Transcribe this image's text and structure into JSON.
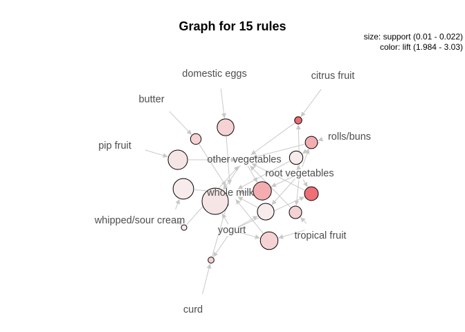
{
  "title": "Graph for 15 rules",
  "legend": {
    "size": "size: support (0.01 - 0.022)",
    "color": "color: lift (1.984 - 3.03)"
  },
  "colors": {
    "edge": "#c8c8c8",
    "node_stroke": "#000000",
    "label": "#4d4d4d",
    "lift_low": "#f7eded",
    "lift_high": "#ee6b74"
  },
  "items": [
    {
      "id": "domestic_eggs",
      "label": "domestic eggs"
    },
    {
      "id": "citrus_fruit",
      "label": "citrus fruit"
    },
    {
      "id": "butter",
      "label": "butter"
    },
    {
      "id": "rolls_buns",
      "label": "rolls/buns"
    },
    {
      "id": "pip_fruit",
      "label": "pip fruit"
    },
    {
      "id": "other_vegetables",
      "label": "other vegetables"
    },
    {
      "id": "root_vegetables",
      "label": "root vegetables"
    },
    {
      "id": "whole_milk",
      "label": "whole milk"
    },
    {
      "id": "whipped_sour_cream",
      "label": "whipped/sour cream"
    },
    {
      "id": "yogurt",
      "label": "yogurt"
    },
    {
      "id": "tropical_fruit",
      "label": "tropical fruit"
    },
    {
      "id": "curd",
      "label": "curd"
    }
  ],
  "rules": [
    {
      "lhs": [
        "domestic_eggs"
      ],
      "rhs": "whole_milk",
      "support": 0.0146,
      "lift": 2.2
    },
    {
      "lhs": [
        "butter"
      ],
      "rhs": "whole_milk",
      "support": 0.0115,
      "lift": 2.2
    },
    {
      "lhs": [
        "pip_fruit"
      ],
      "rhs": "other_vegetables",
      "support": 0.0163,
      "lift": 2.05
    },
    {
      "lhs": [
        "whipped_sour_cream"
      ],
      "rhs": "whole_milk",
      "support": 0.0171,
      "lift": 2.0
    },
    {
      "lhs": [
        "whipped_sour_cream"
      ],
      "rhs": "other_vegetables",
      "support": 0.01,
      "lift": 2.0
    },
    {
      "lhs": [
        "other_vegetables",
        "yogurt"
      ],
      "rhs": "whole_milk",
      "support": 0.0223,
      "lift": 2.05
    },
    {
      "lhs": [
        "citrus_fruit",
        "root_vegetables"
      ],
      "rhs": "other_vegetables",
      "support": 0.0104,
      "lift": 3.03
    },
    {
      "lhs": [
        "rolls_buns",
        "root_vegetables"
      ],
      "rhs": "other_vegetables",
      "support": 0.0122,
      "lift": 2.5
    },
    {
      "lhs": [
        "rolls_buns",
        "root_vegetables"
      ],
      "rhs": "whole_milk",
      "support": 0.0127,
      "lift": 2.0
    },
    {
      "lhs": [
        "root_vegetables",
        "yogurt"
      ],
      "rhs": "other_vegetables",
      "support": 0.0129,
      "lift": 3.0
    },
    {
      "lhs": [
        "root_vegetables",
        "tropical_fruit"
      ],
      "rhs": "other_vegetables",
      "support": 0.0123,
      "lift": 2.2
    },
    {
      "lhs": [
        "other_vegetables",
        "root_vegetables"
      ],
      "rhs": "whole_milk",
      "support": 0.0155,
      "lift": 2.5
    },
    {
      "lhs": [
        "tropical_fruit",
        "yogurt"
      ],
      "rhs": "whole_milk",
      "support": 0.0151,
      "lift": 2.2
    },
    {
      "lhs": [
        "root_vegetables",
        "yogurt"
      ],
      "rhs": "whole_milk",
      "support": 0.0145,
      "lift": 2.0
    },
    {
      "lhs": [
        "curd",
        "yogurt"
      ],
      "rhs": "whole_milk",
      "support": 0.0101,
      "lift": 2.2
    }
  ]
}
